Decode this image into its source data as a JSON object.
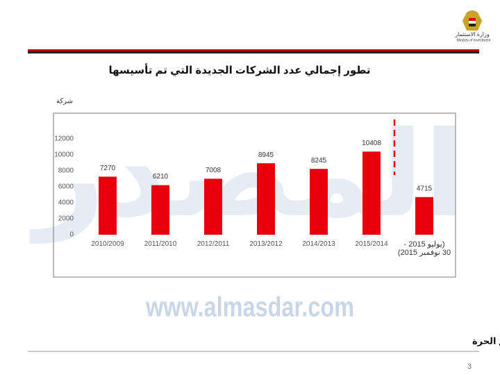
{
  "header": {
    "ministry_ar": "وزارة الاستثمار",
    "ministry_en": "Ministry of Investment"
  },
  "chart_data": {
    "type": "bar",
    "title": "تطور إجمالي عدد الشركات الجديدة التي تم تأسيسها",
    "y_label": "شركة",
    "categories": [
      "2010/2009",
      "2011/2010",
      "2012/2011",
      "2013/2012",
      "2014/2013",
      "2015/2014",
      "(يوليو 2015 -\n30 نوفمبر 2015)"
    ],
    "values": [
      7270,
      6210,
      7008,
      8945,
      8245,
      10408,
      4715
    ],
    "color": "#e8000b",
    "ylim": [
      0,
      12000
    ],
    "yticks": [
      0,
      2000,
      4000,
      6000,
      8000,
      10000,
      12000
    ]
  },
  "watermark": {
    "logo": "المصدر",
    "site": "www.almasdar.com"
  },
  "footer": {
    "source": "المصدر: الهيئة العامة للاستثمار والمناطق الحرة",
    "page": "3"
  }
}
